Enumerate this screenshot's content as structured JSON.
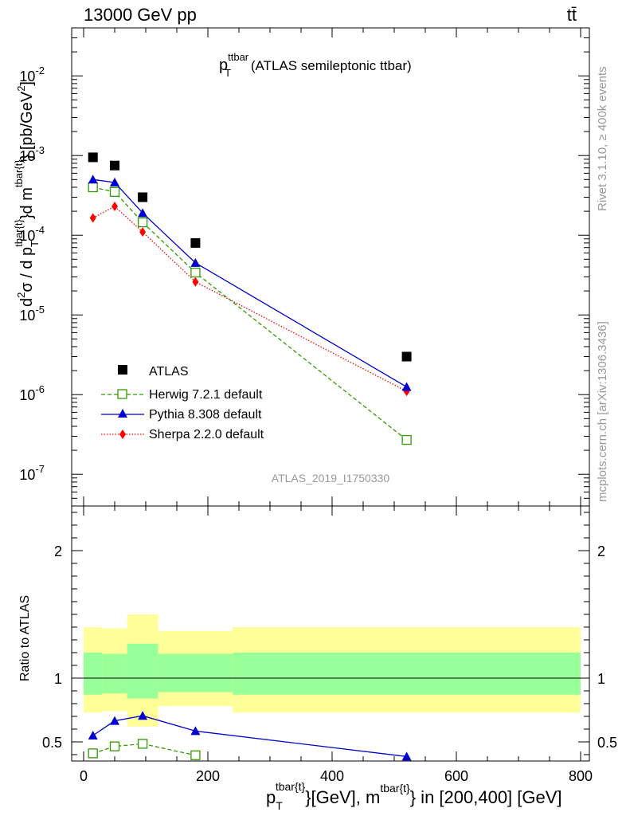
{
  "header": {
    "left": "13000 GeV pp",
    "right": "tt̄"
  },
  "side_labels": {
    "rivet": "Rivet 3.1.10, ≥ 400k events",
    "mcplots": "mcplots.cern.ch [arXiv:1306.3436]"
  },
  "watermark": "ATLAS_2019_I1750330",
  "top_title": {
    "main": "p",
    "sub": "T",
    "sup": "ttbar",
    "rest": " (ATLAS semileptonic ttbar)"
  },
  "ylabel_top": {
    "part1": "d",
    "sup2": "2",
    "part2": "σ / d p",
    "subT": "T",
    "sup_tbar": "tbar{t}",
    "part3": "}d m",
    "sup_tbar2": "tbar{t}",
    "part4": "} [pb/GeV",
    "sup3": "2",
    "part5": "]"
  },
  "ylabel_bottom": "Ratio to ATLAS",
  "xlabel": {
    "p": "p",
    "subT": "T",
    "sup1": "tbar{t}",
    "mid": "}[GeV], m",
    "sup2": "tbar{t}",
    "end": "} in [200,400] [GeV]"
  },
  "legend": {
    "atlas": "ATLAS",
    "herwig": "Herwig 7.2.1 default",
    "pythia": "Pythia 8.308 default",
    "sherpa": "Sherpa 2.2.0 default"
  },
  "colors": {
    "atlas": "#000000",
    "herwig": "#339900",
    "pythia": "#0000cc",
    "sherpa": "#ff0000",
    "band_outer": "#ffff99",
    "band_inner": "#99ff99"
  },
  "chart_data": [
    {
      "type": "scatter",
      "log_y": true,
      "xlim": [
        -20,
        800
      ],
      "ylim": [
        4e-08,
        0.04
      ],
      "y_ticks": [
        "10^-7",
        "10^-6",
        "10^-5",
        "10^-4",
        "10^-3",
        "10^-2"
      ],
      "series": [
        {
          "name": "ATLAS",
          "x": [
            15,
            50,
            95,
            180,
            520
          ],
          "y": [
            0.00095,
            0.00075,
            0.0003,
            8e-05,
            3e-06
          ]
        },
        {
          "name": "Herwig 7.2.1 default",
          "x": [
            15,
            50,
            95,
            180,
            520
          ],
          "y": [
            0.0004,
            0.00035,
            0.000145,
            3.4e-05,
            2.7e-07
          ]
        },
        {
          "name": "Pythia 8.308 default",
          "x": [
            15,
            50,
            95,
            180,
            520
          ],
          "y": [
            0.0005,
            0.00046,
            0.00019,
            4.5e-05,
            1.25e-06
          ]
        },
        {
          "name": "Sherpa 2.2.0 default",
          "x": [
            15,
            50,
            95,
            180,
            520
          ],
          "y": [
            0.000165,
            0.00023,
            0.00011,
            2.6e-05,
            1.1e-06
          ]
        }
      ]
    },
    {
      "type": "line",
      "xlim": [
        -20,
        800
      ],
      "ylim": [
        0.35,
        2.35
      ],
      "x_ticks": [
        0,
        200,
        400,
        600,
        800
      ],
      "y_ticks": [
        0.5,
        1,
        2
      ],
      "bands": [
        {
          "x0": 0,
          "x1": 30,
          "outer": [
            0.73,
            1.4
          ],
          "inner": [
            0.87,
            1.2
          ]
        },
        {
          "x0": 30,
          "x1": 70,
          "outer": [
            0.74,
            1.39
          ],
          "inner": [
            0.88,
            1.19
          ]
        },
        {
          "x0": 70,
          "x1": 120,
          "outer": [
            0.62,
            1.5
          ],
          "inner": [
            0.84,
            1.27
          ]
        },
        {
          "x0": 120,
          "x1": 240,
          "outer": [
            0.78,
            1.37
          ],
          "inner": [
            0.89,
            1.19
          ]
        },
        {
          "x0": 240,
          "x1": 800,
          "outer": [
            0.73,
            1.4
          ],
          "inner": [
            0.87,
            1.2
          ]
        }
      ],
      "series": [
        {
          "name": "Herwig 7.2.1 default",
          "x": [
            15,
            50,
            95,
            180
          ],
          "y": [
            0.41,
            0.465,
            0.485,
            0.395
          ]
        },
        {
          "name": "Pythia 8.308 default",
          "x": [
            15,
            50,
            95,
            180,
            520
          ],
          "y": [
            0.55,
            0.665,
            0.705,
            0.585,
            0.385
          ]
        }
      ]
    }
  ]
}
